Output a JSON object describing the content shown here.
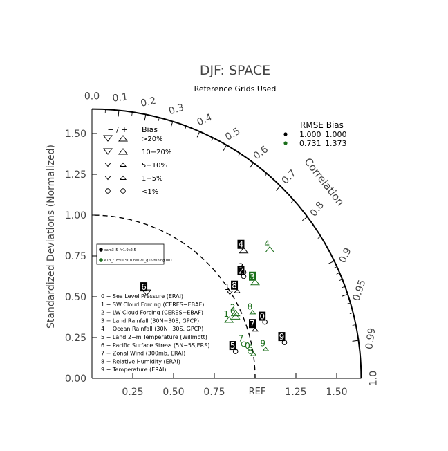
{
  "chart_data": {
    "type": "scatter",
    "subtype": "taylor-diagram",
    "title": "DJF: SPACE",
    "subtitle": "Reference Grids Used",
    "ylabel": "Standardized Deviations (Normalized)",
    "arc_label": "Correlation",
    "ref_label": "REF",
    "ylim": [
      0,
      1.65
    ],
    "xlim": [
      0,
      1.65
    ],
    "std_ticks": [
      "0.00",
      "0.25",
      "0.50",
      "0.75",
      "1.00",
      "1.25",
      "1.50"
    ],
    "x_std_ticks": [
      "0.25",
      "0.50",
      "0.75",
      "1.25",
      "1.50"
    ],
    "corr_outer_ticks": [
      "0.0",
      "0.1",
      "0.2",
      "0.3",
      "0.4",
      "0.5",
      "0.6",
      "0.7",
      "0.8",
      "0.9",
      "0.95",
      "0.99",
      "1.0"
    ],
    "bias_legend": {
      "header_sign": "− / +",
      "header_bias": "Bias",
      "rows": [
        ">20%",
        "10−20%",
        "5−10%",
        "1−5%",
        "<1%"
      ]
    },
    "rmse_legend": {
      "header": "RMSE  Bias",
      "rows": [
        {
          "rmse": "1.000",
          "bias": "1.000",
          "color": "#000000"
        },
        {
          "rmse": "0.731",
          "bias": "1.373",
          "color": "#1a6e1a"
        }
      ]
    },
    "case_legend": [
      {
        "name": "cam3_5_fv1.9x2.5",
        "color": "#000000"
      },
      {
        "name": "e13_f1850CSCN.ne120_g16.tuning.001",
        "color": "#1a6e1a"
      }
    ],
    "variables": [
      "0 − Sea Level Pressure (ERAI)",
      "1 − SW Cloud Forcing (CERES−EBAF)",
      "2 − LW Cloud Forcing (CERES−EBAF)",
      "3 − Land Rainfall (30N−30S, GPCP)",
      "4 − Ocean Rainfall (30N−30S, GPCP)",
      "5 − Land 2−m Temperature (Willmott)",
      "6 − Pacific Surface Stress (5N−5S,ERS)",
      "7 − Zonal Wind (300mb, ERAI)",
      "8 − Relative Humidity (ERAI)",
      "9 − Temperature (ERAI)"
    ],
    "series": [
      {
        "name": "cam3_5_fv1.9x2.5",
        "color": "#000000",
        "points": [
          {
            "label": "0",
            "x": 1.06,
            "y": 0.345,
            "marker": "circle",
            "boxed": true
          },
          {
            "label": "1",
            "x": 0.845,
            "y": 0.525,
            "marker": "tri-down-small",
            "boxed": false
          },
          {
            "label": "2",
            "x": 0.93,
            "y": 0.625,
            "marker": "circle",
            "boxed": true
          },
          {
            "label": "3",
            "x": 0.93,
            "y": 0.65,
            "marker": "circle",
            "boxed": false
          },
          {
            "label": "4",
            "x": 0.93,
            "y": 0.785,
            "marker": "tri-up",
            "boxed": true
          },
          {
            "label": "5",
            "x": 0.88,
            "y": 0.165,
            "marker": "circle",
            "boxed": true
          },
          {
            "label": "6",
            "x": 0.335,
            "y": 0.525,
            "marker": "tri-down",
            "boxed": true
          },
          {
            "label": "7",
            "x": 1.0,
            "y": 0.3,
            "marker": "tri-up-small",
            "boxed": true
          },
          {
            "label": "8",
            "x": 0.89,
            "y": 0.535,
            "marker": "tri-up-small",
            "boxed": true
          },
          {
            "label": "9",
            "x": 1.18,
            "y": 0.22,
            "marker": "circle",
            "boxed": true
          }
        ]
      },
      {
        "name": "e13_f1850CSCN.ne120_g16.tuning.001",
        "color": "#1a6e1a",
        "points": [
          {
            "label": "0",
            "x": 0.97,
            "y": 0.165,
            "marker": "circle",
            "boxed": false
          },
          {
            "label": "1",
            "x": 0.84,
            "y": 0.36,
            "marker": "tri-up",
            "boxed": false
          },
          {
            "label": "2",
            "x": 0.88,
            "y": 0.4,
            "marker": "tri-up",
            "boxed": false
          },
          {
            "label": "3",
            "x": 1.0,
            "y": 0.59,
            "marker": "tri-up",
            "boxed": true
          },
          {
            "label": "4",
            "x": 1.09,
            "y": 0.79,
            "marker": "tri-up",
            "boxed": false
          },
          {
            "label": "5",
            "x": 0.99,
            "y": 0.15,
            "marker": "tri-up-small",
            "boxed": false
          },
          {
            "label": "6",
            "x": 0.88,
            "y": 0.38,
            "marker": "tri-up",
            "boxed": false
          },
          {
            "label": "7",
            "x": 0.93,
            "y": 0.21,
            "marker": "circle",
            "boxed": false
          },
          {
            "label": "8",
            "x": 0.985,
            "y": 0.405,
            "marker": "tri-up-small",
            "boxed": false
          },
          {
            "label": "9",
            "x": 1.065,
            "y": 0.18,
            "marker": "tri-up-small",
            "boxed": false
          }
        ]
      }
    ],
    "grid": false,
    "legend_placement": "upper-left and right"
  }
}
